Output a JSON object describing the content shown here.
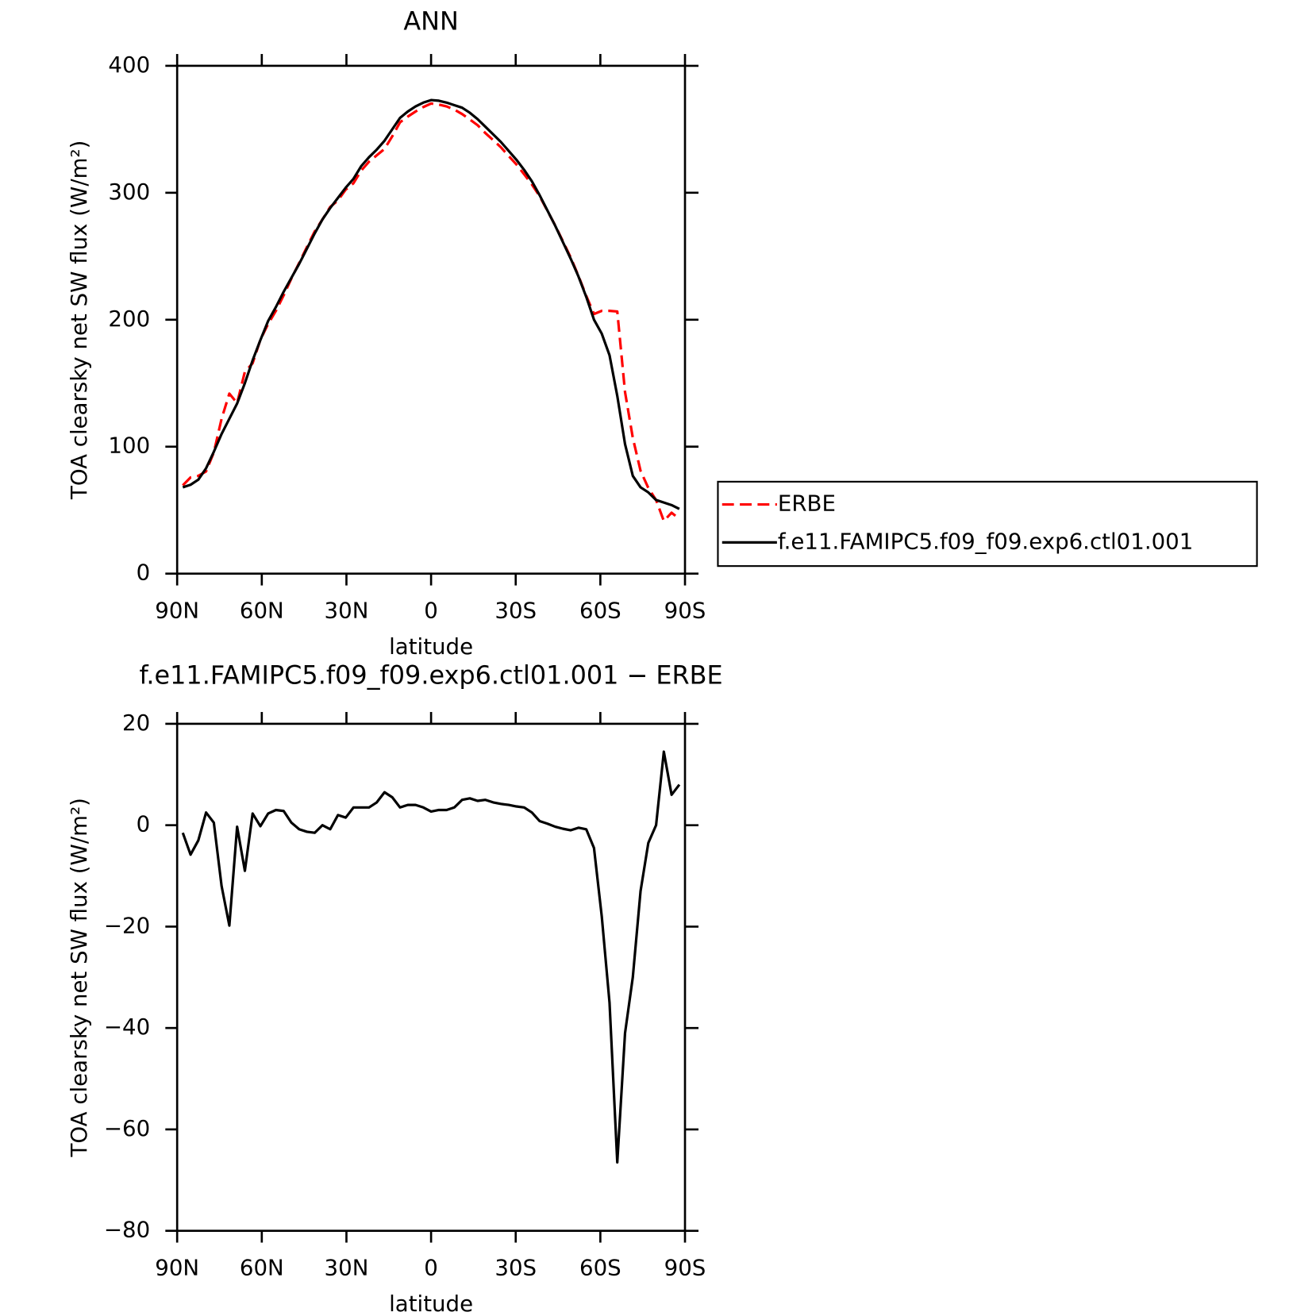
{
  "chart_data": [
    {
      "type": "line",
      "title": "ANN",
      "xlabel": "latitude",
      "ylabel": "TOA clearsky net SW flux (W/m²)",
      "x": [
        88,
        85.25,
        82.5,
        79.75,
        77,
        74.25,
        71.5,
        68.75,
        66,
        63.25,
        60.5,
        57.75,
        55,
        52.25,
        49.5,
        46.75,
        44,
        41.25,
        38.5,
        35.75,
        33,
        30.25,
        27.5,
        24.75,
        22,
        19.25,
        16.5,
        13.75,
        11,
        8.25,
        5.5,
        2.75,
        0,
        -2.75,
        -5.5,
        -8.25,
        -11,
        -13.75,
        -16.5,
        -19.25,
        -22,
        -24.75,
        -27.5,
        -30.25,
        -33,
        -35.75,
        -38.5,
        -41.25,
        -44,
        -46.75,
        -49.5,
        -52.25,
        -55,
        -57.75,
        -60.5,
        -63.25,
        -66,
        -68.75,
        -71.5,
        -74.25,
        -77,
        -79.75,
        -82.5,
        -85.25,
        -88
      ],
      "series": [
        {
          "name": "ERBE",
          "color": "#ff0000",
          "line_style": "dashed",
          "values": [
            69.5,
            75.8,
            77,
            80.5,
            95.5,
            122,
            141.8,
            134.3,
            159,
            165.7,
            184.2,
            196.7,
            207,
            219.2,
            232.5,
            244.8,
            257.3,
            269.5,
            279,
            288.8,
            294,
            302.5,
            307.5,
            317.5,
            324.5,
            329.5,
            334.5,
            344.5,
            355.5,
            360,
            364,
            367.5,
            370.3,
            369.5,
            368,
            365.5,
            362,
            357.7,
            353.2,
            347,
            341.5,
            335.8,
            329,
            322.3,
            314.5,
            306.5,
            297.2,
            285.7,
            274.3,
            261.7,
            249,
            234.5,
            218.8,
            204.5,
            207,
            207,
            206.5,
            143,
            107,
            81,
            67.5,
            58,
            41.5,
            48,
            43
          ]
        },
        {
          "name": "f.e11.FAMIPC5.f09_f09.exp6.ctl01.001",
          "color": "#000000",
          "line_style": "solid",
          "values": [
            68,
            70,
            74,
            83,
            96,
            110,
            122,
            134,
            150,
            168,
            184,
            199,
            210,
            222,
            233,
            244,
            256,
            268,
            279,
            288,
            296,
            304,
            311,
            321,
            328,
            334,
            341,
            350,
            359,
            364,
            368,
            371,
            373,
            372.5,
            371,
            369,
            367,
            363,
            358,
            352,
            346,
            340,
            333,
            326,
            318,
            309,
            298,
            286,
            274,
            261,
            248,
            234,
            218,
            200,
            189,
            172,
            140,
            102,
            77,
            68,
            64,
            58,
            56,
            54,
            51
          ]
        }
      ],
      "xlim": [
        90,
        -90
      ],
      "xticks": [
        {
          "value": 90,
          "label": "90N"
        },
        {
          "value": 60,
          "label": "60N"
        },
        {
          "value": 30,
          "label": "30N"
        },
        0,
        {
          "value": -30,
          "label": "30S"
        },
        {
          "value": -60,
          "label": "60S"
        },
        {
          "value": -90,
          "label": "90S"
        }
      ],
      "ylim": [
        0,
        400
      ],
      "yticks": [
        0,
        100,
        200,
        300,
        400
      ],
      "legend": "right"
    },
    {
      "type": "line",
      "title": "f.e11.FAMIPC5.f09_f09.exp6.ctl01.001 − ERBE",
      "xlabel": "latitude",
      "ylabel": "TOA clearsky net SW flux (W/m²)",
      "x": [
        88,
        85.25,
        82.5,
        79.75,
        77,
        74.25,
        71.5,
        68.75,
        66,
        63.25,
        60.5,
        57.75,
        55,
        52.25,
        49.5,
        46.75,
        44,
        41.25,
        38.5,
        35.75,
        33,
        30.25,
        27.5,
        24.75,
        22,
        19.25,
        16.5,
        13.75,
        11,
        8.25,
        5.5,
        2.75,
        0,
        -2.75,
        -5.5,
        -8.25,
        -11,
        -13.75,
        -16.5,
        -19.25,
        -22,
        -24.75,
        -27.5,
        -30.25,
        -33,
        -35.75,
        -38.5,
        -41.25,
        -44,
        -46.75,
        -49.5,
        -52.25,
        -55,
        -57.75,
        -60.5,
        -63.25,
        -66,
        -68.75,
        -71.5,
        -74.25,
        -77,
        -79.75,
        -82.5,
        -85.25,
        -88
      ],
      "values": [
        -1.5,
        -5.8,
        -3,
        2.5,
        0.5,
        -12,
        -19.8,
        -0.3,
        -9,
        2.3,
        -0.2,
        2.3,
        3,
        2.8,
        0.5,
        -0.8,
        -1.3,
        -1.5,
        0,
        -0.8,
        2,
        1.5,
        3.5,
        3.5,
        3.5,
        4.5,
        6.5,
        5.5,
        3.5,
        4,
        4,
        3.5,
        2.7,
        3,
        3,
        3.5,
        5,
        5.3,
        4.8,
        5,
        4.5,
        4.2,
        4,
        3.7,
        3.5,
        2.5,
        0.8,
        0.3,
        -0.3,
        -0.7,
        -1,
        -0.5,
        -0.8,
        -4.5,
        -18,
        -35,
        -66.5,
        -41,
        -30,
        -13,
        -3.5,
        0,
        14.5,
        6,
        8
      ],
      "color": "#000000",
      "xlim": [
        90,
        -90
      ],
      "xticks": [
        {
          "value": 90,
          "label": "90N"
        },
        {
          "value": 60,
          "label": "60N"
        },
        {
          "value": 30,
          "label": "30N"
        },
        0,
        {
          "value": -30,
          "label": "30S"
        },
        {
          "value": -60,
          "label": "60S"
        },
        {
          "value": -90,
          "label": "90S"
        }
      ],
      "ylim": [
        -80,
        20
      ],
      "yticks": [
        {
          "value": -80,
          "label": "−80"
        },
        {
          "value": -60,
          "label": "−60"
        },
        {
          "value": -40,
          "label": "−40"
        },
        {
          "value": -20,
          "label": "−20"
        },
        0,
        20
      ]
    }
  ]
}
